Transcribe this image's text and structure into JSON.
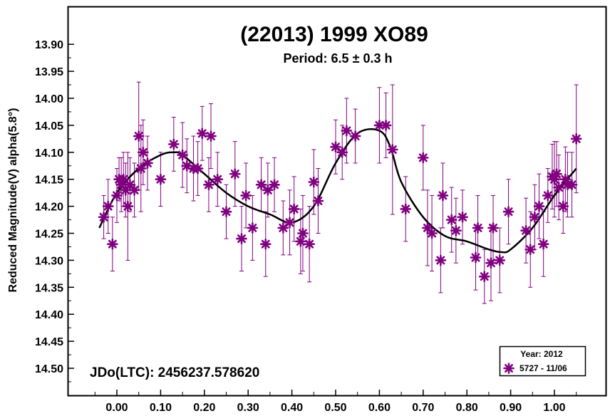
{
  "chart_data": {
    "type": "scatter",
    "title": "(22013) 1999 XO89",
    "subtitle": "Period: 6.5 ± 0.3 h",
    "xlabel": "",
    "ylabel": "Reduced Magnitude(V) alpha(5.8°)",
    "xlim": [
      -0.1,
      1.1
    ],
    "ylim": [
      13.85,
      14.55
    ],
    "y_inverted": true,
    "grid": false,
    "x_ticks": [
      "0.00",
      "0.10",
      "0.20",
      "0.30",
      "0.40",
      "0.50",
      "0.60",
      "0.70",
      "0.80",
      "0.90",
      "1.00"
    ],
    "y_ticks": [
      "13.90",
      "13.95",
      "14.00",
      "14.05",
      "14.10",
      "14.15",
      "14.20",
      "14.25",
      "14.30",
      "14.35",
      "14.40",
      "14.45",
      "14.50"
    ],
    "annotation": "JDo(LTC): 2456237.578620",
    "legend": {
      "placement": "bottom-right",
      "title": "Year: 2012",
      "entries": [
        "5727 - 11/06"
      ]
    },
    "series": [
      {
        "name": "5727 - 11/06",
        "color": "#800080",
        "phase": [
          -0.03,
          -0.02,
          -0.01,
          0.0,
          0.005,
          0.01,
          0.015,
          0.02,
          0.025,
          0.03,
          0.04,
          0.05,
          0.055,
          0.06,
          0.07,
          0.1,
          0.13,
          0.15,
          0.16,
          0.175,
          0.185,
          0.195,
          0.21,
          0.215,
          0.23,
          0.25,
          0.27,
          0.285,
          0.295,
          0.31,
          0.33,
          0.34,
          0.345,
          0.36,
          0.38,
          0.395,
          0.405,
          0.42,
          0.425,
          0.44,
          0.45,
          0.46,
          0.5,
          0.515,
          0.525,
          0.545,
          0.6,
          0.615,
          0.63,
          0.66,
          0.7,
          0.71,
          0.72,
          0.74,
          0.745,
          0.765,
          0.775,
          0.79,
          0.82,
          0.825,
          0.84,
          0.855,
          0.86,
          0.875,
          0.895,
          0.935,
          0.945,
          0.955,
          0.965,
          0.975,
          0.985,
          0.995,
          1.0,
          1.005,
          1.01,
          1.02,
          1.025,
          1.03,
          1.04,
          1.05
        ],
        "magnitude": [
          14.22,
          14.2,
          14.27,
          14.18,
          14.15,
          14.16,
          14.15,
          14.17,
          14.2,
          14.16,
          14.17,
          14.07,
          14.13,
          14.1,
          14.12,
          14.15,
          14.085,
          14.105,
          14.125,
          14.13,
          14.13,
          14.065,
          14.16,
          14.07,
          14.15,
          14.21,
          14.14,
          14.26,
          14.18,
          14.24,
          14.16,
          14.27,
          14.17,
          14.16,
          14.24,
          14.23,
          14.205,
          14.265,
          14.25,
          14.27,
          14.155,
          14.19,
          14.09,
          14.1,
          14.06,
          14.07,
          14.05,
          14.05,
          14.095,
          14.205,
          14.11,
          14.24,
          14.25,
          14.3,
          14.18,
          14.225,
          14.245,
          14.22,
          14.295,
          14.24,
          14.33,
          14.305,
          14.24,
          14.3,
          14.21,
          14.245,
          14.28,
          14.22,
          14.2,
          14.27,
          14.18,
          14.145,
          14.15,
          14.14,
          14.165,
          14.2,
          14.15,
          14.16,
          14.16,
          14.075
        ],
        "error": [
          0.04,
          0.05,
          0.05,
          0.05,
          0.04,
          0.05,
          0.05,
          0.05,
          0.1,
          0.05,
          0.05,
          0.1,
          0.08,
          0.06,
          0.05,
          0.05,
          0.05,
          0.06,
          0.05,
          0.06,
          0.05,
          0.05,
          0.05,
          0.06,
          0.05,
          0.05,
          0.06,
          0.06,
          0.06,
          0.06,
          0.05,
          0.06,
          0.05,
          0.05,
          0.05,
          0.06,
          0.06,
          0.06,
          0.07,
          0.07,
          0.06,
          0.06,
          0.05,
          0.05,
          0.06,
          0.05,
          0.07,
          0.06,
          0.12,
          0.06,
          0.06,
          0.07,
          0.07,
          0.06,
          0.06,
          0.06,
          0.06,
          0.05,
          0.06,
          0.06,
          0.05,
          0.07,
          0.06,
          0.06,
          0.06,
          0.06,
          0.07,
          0.06,
          0.06,
          0.06,
          0.05,
          0.06,
          0.07,
          0.06,
          0.06,
          0.05,
          0.06,
          0.06,
          0.06,
          0.1
        ]
      },
      {
        "name": "fit",
        "type": "line",
        "color": "#000000",
        "phase": [
          -0.04,
          0.0,
          0.05,
          0.1,
          0.13,
          0.15,
          0.2,
          0.25,
          0.3,
          0.35,
          0.4,
          0.45,
          0.5,
          0.55,
          0.6,
          0.625,
          0.65,
          0.7,
          0.75,
          0.8,
          0.85,
          0.88,
          0.9,
          0.95,
          1.0,
          1.05
        ],
        "magnitude": [
          14.24,
          14.175,
          14.13,
          14.105,
          14.1,
          14.105,
          14.14,
          14.175,
          14.2,
          14.215,
          14.23,
          14.2,
          14.12,
          14.065,
          14.06,
          14.09,
          14.155,
          14.22,
          14.255,
          14.265,
          14.28,
          14.285,
          14.28,
          14.24,
          14.18,
          14.13
        ]
      }
    ]
  }
}
